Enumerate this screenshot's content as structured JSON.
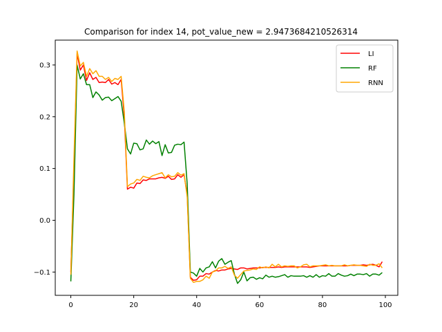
{
  "chart_data": {
    "type": "line",
    "title": "Comparison for index 14, pot_value_new = 2.9473684210526314",
    "xlabel": "",
    "ylabel": "",
    "xlim": [
      -4.95,
      103.95
    ],
    "ylim": [
      -0.145,
      0.348
    ],
    "x_ticks": [
      0,
      20,
      40,
      60,
      80,
      100
    ],
    "y_ticks": [
      -0.1,
      0.0,
      0.1,
      0.2,
      0.3
    ],
    "x_tick_labels": [
      "0",
      "20",
      "40",
      "60",
      "80",
      "100"
    ],
    "y_tick_labels": [
      "−0.1",
      "0.0",
      "0.1",
      "0.2",
      "0.3"
    ],
    "grid": false,
    "legend": "top-right",
    "series": [
      {
        "name": "LI",
        "color": "#ff0000",
        "values": [
          -0.1,
          0.1,
          0.322,
          0.29,
          0.3,
          0.27,
          0.285,
          0.272,
          0.276,
          0.266,
          0.267,
          0.266,
          0.272,
          0.263,
          0.266,
          0.262,
          0.272,
          0.2,
          0.06,
          0.064,
          0.062,
          0.072,
          0.071,
          0.078,
          0.077,
          0.08,
          0.08,
          0.08,
          0.082,
          0.083,
          0.081,
          0.085,
          0.079,
          0.08,
          0.088,
          0.083,
          0.088,
          0.05,
          -0.11,
          -0.116,
          -0.115,
          -0.108,
          -0.108,
          -0.103,
          -0.104,
          -0.1,
          -0.097,
          -0.098,
          -0.096,
          -0.096,
          -0.094,
          -0.093,
          -0.094,
          -0.095,
          -0.092,
          -0.092,
          -0.094,
          -0.093,
          -0.092,
          -0.092,
          -0.092,
          -0.091,
          -0.091,
          -0.091,
          -0.091,
          -0.091,
          -0.09,
          -0.091,
          -0.09,
          -0.09,
          -0.09,
          -0.09,
          -0.09,
          -0.09,
          -0.09,
          -0.09,
          -0.091,
          -0.09,
          -0.089,
          -0.088,
          -0.088,
          -0.088,
          -0.088,
          -0.088,
          -0.088,
          -0.088,
          -0.088,
          -0.088,
          -0.088,
          -0.087,
          -0.087,
          -0.087,
          -0.087,
          -0.086,
          -0.087,
          -0.086,
          -0.085,
          -0.087,
          -0.09,
          -0.08
        ]
      },
      {
        "name": "RF",
        "color": "#008000",
        "values": [
          -0.118,
          0.05,
          0.3,
          0.273,
          0.283,
          0.262,
          0.262,
          0.237,
          0.248,
          0.242,
          0.232,
          0.237,
          0.238,
          0.231,
          0.235,
          0.239,
          0.23,
          0.188,
          0.138,
          0.128,
          0.149,
          0.148,
          0.136,
          0.138,
          0.155,
          0.147,
          0.153,
          0.148,
          0.152,
          0.125,
          0.146,
          0.13,
          0.131,
          0.145,
          0.147,
          0.146,
          0.151,
          0.07,
          -0.1,
          -0.102,
          -0.108,
          -0.093,
          -0.1,
          -0.092,
          -0.09,
          -0.08,
          -0.092,
          -0.079,
          -0.074,
          -0.085,
          -0.081,
          -0.078,
          -0.104,
          -0.122,
          -0.115,
          -0.1,
          -0.117,
          -0.111,
          -0.11,
          -0.114,
          -0.111,
          -0.113,
          -0.106,
          -0.11,
          -0.108,
          -0.11,
          -0.109,
          -0.107,
          -0.105,
          -0.11,
          -0.107,
          -0.108,
          -0.108,
          -0.108,
          -0.107,
          -0.11,
          -0.107,
          -0.11,
          -0.105,
          -0.11,
          -0.107,
          -0.108,
          -0.103,
          -0.108,
          -0.108,
          -0.103,
          -0.106,
          -0.108,
          -0.107,
          -0.104,
          -0.107,
          -0.104,
          -0.104,
          -0.105,
          -0.103,
          -0.108,
          -0.104,
          -0.104,
          -0.106,
          -0.101
        ]
      },
      {
        "name": "RNN",
        "color": "#ffa500",
        "values": [
          -0.105,
          0.12,
          0.327,
          0.298,
          0.305,
          0.278,
          0.293,
          0.283,
          0.289,
          0.278,
          0.278,
          0.272,
          0.276,
          0.268,
          0.274,
          0.272,
          0.278,
          0.21,
          0.065,
          0.07,
          0.072,
          0.079,
          0.077,
          0.085,
          0.083,
          0.082,
          0.086,
          0.088,
          0.09,
          0.092,
          0.082,
          0.088,
          0.084,
          0.085,
          0.092,
          0.087,
          0.09,
          0.045,
          -0.112,
          -0.12,
          -0.118,
          -0.118,
          -0.115,
          -0.108,
          -0.112,
          -0.1,
          -0.098,
          -0.092,
          -0.092,
          -0.089,
          -0.093,
          -0.09,
          -0.106,
          -0.112,
          -0.105,
          -0.098,
          -0.097,
          -0.096,
          -0.094,
          -0.095,
          -0.09,
          -0.092,
          -0.09,
          -0.092,
          -0.085,
          -0.09,
          -0.085,
          -0.09,
          -0.088,
          -0.089,
          -0.088,
          -0.088,
          -0.092,
          -0.09,
          -0.086,
          -0.085,
          -0.09,
          -0.088,
          -0.088,
          -0.088,
          -0.087,
          -0.086,
          -0.088,
          -0.087,
          -0.088,
          -0.088,
          -0.088,
          -0.086,
          -0.088,
          -0.087,
          -0.086,
          -0.087,
          -0.087,
          -0.088,
          -0.089,
          -0.085,
          -0.087,
          -0.087,
          -0.084,
          -0.092
        ]
      }
    ]
  }
}
